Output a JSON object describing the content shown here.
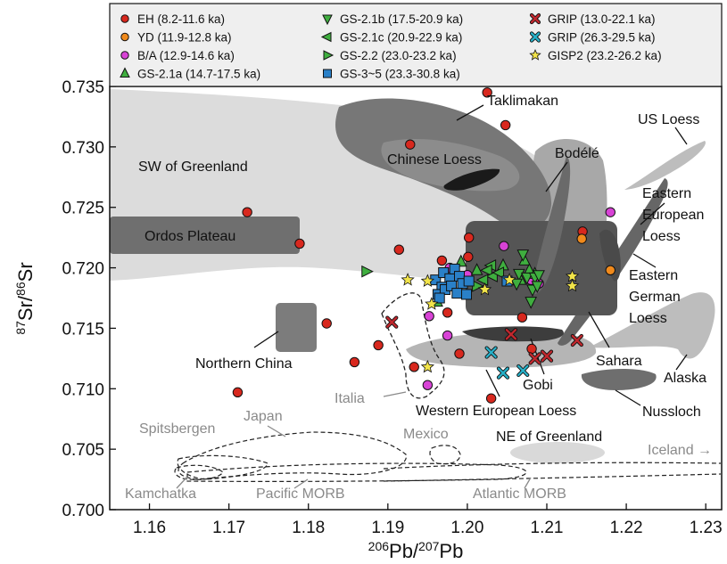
{
  "chart_data": {
    "type": "scatter",
    "title": "",
    "xlabel": "206Pb/207Pb",
    "ylabel": "87Sr/86Sr",
    "xlim": [
      1.155,
      1.232
    ],
    "ylim": [
      0.7,
      0.735
    ],
    "x_ticks": [
      "1.16",
      "1.17",
      "1.18",
      "1.19",
      "1.20",
      "1.21",
      "1.22",
      "1.23"
    ],
    "y_ticks": [
      "0.700",
      "0.705",
      "0.710",
      "0.715",
      "0.720",
      "0.725",
      "0.730",
      "0.735"
    ],
    "grid": false,
    "legend_position": "top",
    "series": [
      {
        "name": "EH (8.2-11.6 ka)",
        "marker": "circle",
        "color": "#d8281e",
        "points": [
          [
            1.1928,
            0.7302
          ],
          [
            1.2025,
            0.7345
          ],
          [
            1.2048,
            0.7318
          ],
          [
            1.1723,
            0.7246
          ],
          [
            1.1789,
            0.722
          ],
          [
            1.1914,
            0.7215
          ],
          [
            1.1968,
            0.7206
          ],
          [
            1.2002,
            0.7225
          ],
          [
            1.2001,
            0.7209
          ],
          [
            1.2145,
            0.723
          ],
          [
            1.1823,
            0.7154
          ],
          [
            1.1888,
            0.7136
          ],
          [
            1.1858,
            0.7122
          ],
          [
            1.1933,
            0.7118
          ],
          [
            1.1711,
            0.7097
          ],
          [
            1.1975,
            0.7163
          ],
          [
            1.199,
            0.7129
          ],
          [
            1.2069,
            0.7159
          ],
          [
            1.2081,
            0.7133
          ],
          [
            1.203,
            0.7092
          ]
        ]
      },
      {
        "name": "YD (11.9-12.8 ka)",
        "marker": "circle",
        "color": "#f08a1c",
        "points": [
          [
            1.2144,
            0.7224
          ],
          [
            1.218,
            0.7198
          ]
        ]
      },
      {
        "name": "B/A (12.9-14.6 ka)",
        "marker": "circle",
        "color": "#d843d6",
        "points": [
          [
            1.218,
            0.7246
          ],
          [
            1.2046,
            0.7218
          ],
          [
            1.1978,
            0.72
          ],
          [
            1.2,
            0.7194
          ],
          [
            1.1952,
            0.716
          ],
          [
            1.1975,
            0.7144
          ],
          [
            1.208,
            0.719
          ],
          [
            1.209,
            0.7187
          ],
          [
            1.195,
            0.7103
          ]
        ]
      },
      {
        "name": "GS-2.1a (14.7-17.5 ka)",
        "marker": "triangle-up",
        "color": "#3fae3f",
        "points": [
          [
            1.1962,
            0.7172
          ],
          [
            1.1992,
            0.7205
          ],
          [
            1.2012,
            0.7198
          ],
          [
            1.2045,
            0.7202
          ],
          [
            1.2072,
            0.7206
          ],
          [
            1.2078,
            0.7198
          ],
          [
            1.2067,
            0.719
          ],
          [
            1.2085,
            0.7195
          ]
        ]
      },
      {
        "name": "GS-2.1b (17.5-20.9 ka)",
        "marker": "triangle-down",
        "color": "#3fae3f",
        "points": [
          [
            1.207,
            0.7211
          ],
          [
            1.2065,
            0.7195
          ],
          [
            1.2075,
            0.7192
          ],
          [
            1.2082,
            0.7182
          ],
          [
            1.2085,
            0.7192
          ],
          [
            1.2088,
            0.7185
          ],
          [
            1.209,
            0.7194
          ],
          [
            1.208,
            0.7172
          ],
          [
            1.2062,
            0.7187
          ]
        ]
      },
      {
        "name": "GS-2.1c (20.9-22.9 ka)",
        "marker": "triangle-left",
        "color": "#3fae3f",
        "points": [
          [
            1.203,
            0.7202
          ],
          [
            1.2025,
            0.7198
          ],
          [
            1.2032,
            0.7193
          ],
          [
            1.204,
            0.7196
          ],
          [
            1.202,
            0.719
          ]
        ]
      },
      {
        "name": "GS-2.2 (23.0-23.2 ka)",
        "marker": "triangle-right",
        "color": "#3fae3f",
        "points": [
          [
            1.1873,
            0.7197
          ],
          [
            1.2012,
            0.7185
          ]
        ]
      },
      {
        "name": "GS-3~5 (23.3-30.8 ka)",
        "marker": "square",
        "color": "#2a80c8",
        "points": [
          [
            1.196,
            0.719
          ],
          [
            1.197,
            0.7196
          ],
          [
            1.1978,
            0.7191
          ],
          [
            1.1984,
            0.7199
          ],
          [
            1.199,
            0.7193
          ],
          [
            1.1994,
            0.7187
          ],
          [
            1.2002,
            0.7189
          ],
          [
            1.1968,
            0.7184
          ],
          [
            1.1963,
            0.7178
          ],
          [
            1.1972,
            0.7182
          ],
          [
            1.198,
            0.7185
          ],
          [
            1.1987,
            0.7179
          ],
          [
            1.1999,
            0.7178
          ],
          [
            1.205,
            0.7189
          ],
          [
            1.1965,
            0.7175
          ]
        ]
      },
      {
        "name": "GRIP (13.0-22.1 ka)",
        "marker": "x",
        "color": "#c0272d",
        "points": [
          [
            1.1905,
            0.7155
          ],
          [
            1.2055,
            0.7145
          ],
          [
            1.2085,
            0.7125
          ],
          [
            1.21,
            0.7127
          ],
          [
            1.2138,
            0.714
          ]
        ]
      },
      {
        "name": "GRIP (26.3-29.5 ka)",
        "marker": "x",
        "color": "#27b0c8",
        "points": [
          [
            1.203,
            0.713
          ],
          [
            1.2045,
            0.7113
          ],
          [
            1.207,
            0.7115
          ]
        ]
      },
      {
        "name": "GISP2 (23.2-26.2 ka)",
        "marker": "star",
        "color": "#f2e44a",
        "points": [
          [
            1.1925,
            0.719
          ],
          [
            1.195,
            0.7189
          ],
          [
            1.1955,
            0.717
          ],
          [
            1.195,
            0.7118
          ],
          [
            1.2022,
            0.7182
          ],
          [
            1.2053,
            0.719
          ],
          [
            1.2132,
            0.7193
          ],
          [
            1.2132,
            0.7185
          ]
        ]
      }
    ],
    "regions": [
      {
        "label": "SW of Greenland",
        "fill": "#dcdcdc"
      },
      {
        "label": "Taklimakan",
        "fill": "#777777"
      },
      {
        "label": "Chinese Loess",
        "fill": "#8c8c8c"
      },
      {
        "label": "Bodélé",
        "fill": "#a8a8a8"
      },
      {
        "label": "US Loess",
        "fill": "#bdbdbd"
      },
      {
        "label": "Ordos Plateau",
        "fill": "#6f6f6f"
      },
      {
        "label": "Eastern European Loess",
        "fill": "#666666"
      },
      {
        "label": "Eastern German Loess",
        "fill": "#555555"
      },
      {
        "label": "Northern China",
        "fill": "#7c7c7c"
      },
      {
        "label": "Sahara",
        "fill": "#555555"
      },
      {
        "label": "Alaska",
        "fill": "#bdbdbd"
      },
      {
        "label": "Gobi",
        "fill": "#aaaaaa"
      },
      {
        "label": "Western European Loess",
        "fill": "#b5b5b5"
      },
      {
        "label": "Nussloch",
        "fill": "#6e6e6e"
      },
      {
        "label": "Italia",
        "fill": "none"
      },
      {
        "label": "Japan",
        "fill": "none"
      },
      {
        "label": "Spitsbergen",
        "fill": "none"
      },
      {
        "label": "Mexico",
        "fill": "none"
      },
      {
        "label": "NE of Greenland",
        "fill": "#d9d9d9"
      },
      {
        "label": "Iceland →",
        "fill": "none"
      },
      {
        "label": "Kamchatka",
        "fill": "none"
      },
      {
        "label": "Pacific MORB",
        "fill": "none"
      },
      {
        "label": "Atlantic MORB",
        "fill": "none"
      }
    ]
  }
}
